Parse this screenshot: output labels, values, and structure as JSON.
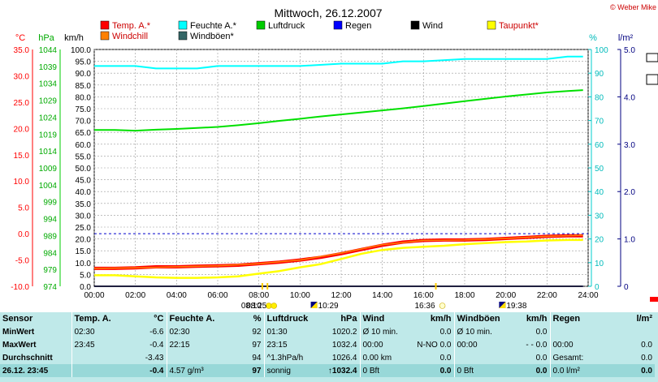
{
  "header": {
    "title": "Mittwoch, 26.12.2007",
    "copyright": "© Weber Mike"
  },
  "legend": [
    {
      "label": "Temp. A.*",
      "color": "#ff0000"
    },
    {
      "label": "Feuchte A.*",
      "color": "#00ffff"
    },
    {
      "label": "Luftdruck",
      "color": "#00cc00"
    },
    {
      "label": "Regen",
      "color": "#0000ff"
    },
    {
      "label": "Wind",
      "color": "#000000"
    },
    {
      "label": "Taupunkt*",
      "color": "#ffff00"
    },
    {
      "label": "Windchill",
      "color": "#ff8000"
    },
    {
      "label": "Windböen*",
      "color": "#336666"
    }
  ],
  "chart_data": {
    "type": "line",
    "x_ticks": [
      "00:00",
      "02:00",
      "04:00",
      "06:00",
      "08:00",
      "10:00",
      "12:00",
      "14:00",
      "16:00",
      "18:00",
      "20:00",
      "22:00",
      "24:00"
    ],
    "axes": {
      "temp_c": {
        "label": "°C",
        "ticks": [
          "35.0",
          "30.0",
          "25.0",
          "20.0",
          "15.0",
          "10.0",
          "5.0",
          "0.0",
          "-5.0",
          "-10.0"
        ],
        "range": [
          -10,
          35
        ],
        "color": "#ff0000"
      },
      "pressure_hpa": {
        "label": "hPa",
        "ticks": [
          "1044",
          "1039",
          "1034",
          "1029",
          "1024",
          "1019",
          "1014",
          "1009",
          "1004",
          "999",
          "994",
          "989",
          "984",
          "979",
          "974"
        ],
        "range": [
          974,
          1044
        ],
        "color": "#00cc00"
      },
      "wind_kmh": {
        "label": "km/h",
        "ticks": [
          "100.0",
          "95.0",
          "90.0",
          "85.0",
          "80.0",
          "75.0",
          "70.0",
          "65.0",
          "60.0",
          "55.0",
          "50.0",
          "45.0",
          "40.0",
          "35.0",
          "30.0",
          "25.0",
          "20.0",
          "15.0",
          "10.0",
          "5.0",
          "0.0"
        ],
        "range": [
          0,
          100
        ]
      },
      "humidity_pct": {
        "label": "%",
        "ticks": [
          "100",
          "90",
          "80",
          "70",
          "60",
          "50",
          "40",
          "30",
          "20",
          "10",
          "0"
        ],
        "range": [
          0,
          100
        ],
        "color": "#00cccc"
      },
      "rain_lm2": {
        "label": "l/m²",
        "ticks": [
          "5.0",
          "4.0",
          "3.0",
          "2.0",
          "1.0",
          "0"
        ],
        "range": [
          0,
          5
        ],
        "color": "#000080"
      }
    },
    "series": [
      {
        "name": "Temp. A.*",
        "axis": "temp_c",
        "color": "#ff0000",
        "x": [
          0,
          1,
          2,
          3,
          4,
          5,
          6,
          7,
          8,
          9,
          10,
          11,
          12,
          13,
          14,
          15,
          16,
          17,
          18,
          19,
          20,
          21,
          22,
          23,
          23.75
        ],
        "y": [
          -6.6,
          -6.6,
          -6.5,
          -6.3,
          -6.3,
          -6.2,
          -6.1,
          -6.0,
          -5.7,
          -5.4,
          -5.0,
          -4.5,
          -3.8,
          -3.0,
          -2.2,
          -1.6,
          -1.3,
          -1.2,
          -1.2,
          -1.1,
          -0.9,
          -0.7,
          -0.5,
          -0.4,
          -0.4
        ]
      },
      {
        "name": "Windchill",
        "axis": "temp_c",
        "color": "#ff8000",
        "x": [
          0,
          2,
          4,
          6,
          8,
          10,
          12,
          14,
          16,
          18,
          20,
          22,
          23.75
        ],
        "y": [
          -6.6,
          -6.5,
          -6.3,
          -6.1,
          -5.7,
          -5.0,
          -3.7,
          -2.1,
          -1.3,
          -1.2,
          -0.9,
          -0.5,
          -0.3
        ]
      },
      {
        "name": "Taupunkt*",
        "axis": "temp_c",
        "color": "#ffff00",
        "x": [
          0,
          1,
          2,
          3,
          4,
          5,
          6,
          7,
          8,
          9,
          10,
          11,
          12,
          13,
          14,
          15,
          16,
          17,
          18,
          19,
          20,
          21,
          22,
          23,
          23.75
        ],
        "y": [
          -7.9,
          -7.9,
          -8.1,
          -8.3,
          -8.4,
          -8.4,
          -8.3,
          -8.1,
          -7.6,
          -7.1,
          -6.4,
          -5.8,
          -4.8,
          -3.8,
          -3.1,
          -2.7,
          -2.5,
          -2.3,
          -2.0,
          -1.8,
          -1.6,
          -1.5,
          -1.3,
          -1.2,
          -1.2
        ]
      },
      {
        "name": "Feuchte A.*",
        "axis": "humidity_pct",
        "color": "#00ffff",
        "x": [
          0,
          2,
          3,
          5,
          6,
          8,
          10,
          12,
          14,
          15,
          16,
          18,
          20,
          22,
          23,
          23.75
        ],
        "y": [
          93,
          93,
          92,
          92,
          93,
          93,
          93,
          94,
          94,
          95,
          95,
          96,
          96,
          96,
          97,
          97
        ]
      },
      {
        "name": "Luftdruck",
        "axis": "pressure_hpa",
        "color": "#00e000",
        "x": [
          0,
          1,
          2,
          3,
          4,
          5,
          6,
          7,
          8,
          9,
          10,
          11,
          12,
          13,
          14,
          15,
          16,
          17,
          18,
          19,
          20,
          21,
          22,
          23,
          23.75
        ],
        "y": [
          1020.2,
          1020.2,
          1020.0,
          1020.3,
          1020.5,
          1020.8,
          1021.1,
          1021.6,
          1022.2,
          1022.9,
          1023.5,
          1024.2,
          1024.8,
          1025.4,
          1026.0,
          1026.6,
          1027.3,
          1028.0,
          1028.7,
          1029.4,
          1030.1,
          1030.7,
          1031.3,
          1031.7,
          1032.0
        ]
      },
      {
        "name": "Regen",
        "axis": "rain_lm2",
        "color": "#0000ff",
        "x": [
          0,
          23.75
        ],
        "y": [
          0,
          0
        ]
      },
      {
        "name": "Wind",
        "axis": "wind_kmh",
        "color": "#000000",
        "x": [
          0,
          23.75
        ],
        "y": [
          0,
          0
        ]
      }
    ],
    "reference_line": {
      "axis": "temp_c",
      "value": 0.0,
      "color": "#0000cc",
      "style": "dashed"
    },
    "grid": true,
    "legend_position": "top",
    "sun_events": [
      {
        "time": "08:10",
        "kind": "sunrise"
      },
      {
        "time": "08:25",
        "kind": "sunrise"
      },
      {
        "time": "10:29",
        "kind": "moonrise"
      },
      {
        "time": "16:36",
        "kind": "sunset"
      },
      {
        "time": "19:38",
        "kind": "moonset"
      }
    ]
  },
  "stats": {
    "headers": [
      "Sensor",
      "Temp. A.",
      "°C",
      "Feuchte A.",
      "%",
      "Luftdruck",
      "hPa",
      "Wind",
      "km/h",
      "Windböen",
      "km/h",
      "Regen",
      "l/m²"
    ],
    "rows": [
      [
        "MinWert",
        "02:30",
        "-6.6",
        "02:30",
        "92",
        "01:30",
        "1020.2",
        "Ø 10 min.",
        "0.0",
        "Ø 10 min.",
        "0.0",
        "",
        ""
      ],
      [
        "MaxWert",
        "23:45",
        "-0.4",
        "22:15",
        "97",
        "23:15",
        "1032.4",
        "00:00",
        "N-NO 0.0",
        "00:00",
        "- - 0.0",
        "00:00",
        "0.0"
      ],
      [
        "Durchschnitt",
        "",
        "-3.43",
        "",
        "94",
        "^1.3hPa/h",
        "1026.4",
        "0.00 km",
        "0.0",
        "",
        "0.0",
        "Gesamt:",
        "0.0"
      ],
      [
        "26.12. 23:45",
        "",
        "-0.4",
        "4.57 g/m³",
        "97",
        "sonnig",
        "↑1032.4",
        "0 Bft",
        "0.0",
        "0 Bft",
        "0.0",
        "0.0 l/m²",
        "0.0"
      ]
    ]
  }
}
